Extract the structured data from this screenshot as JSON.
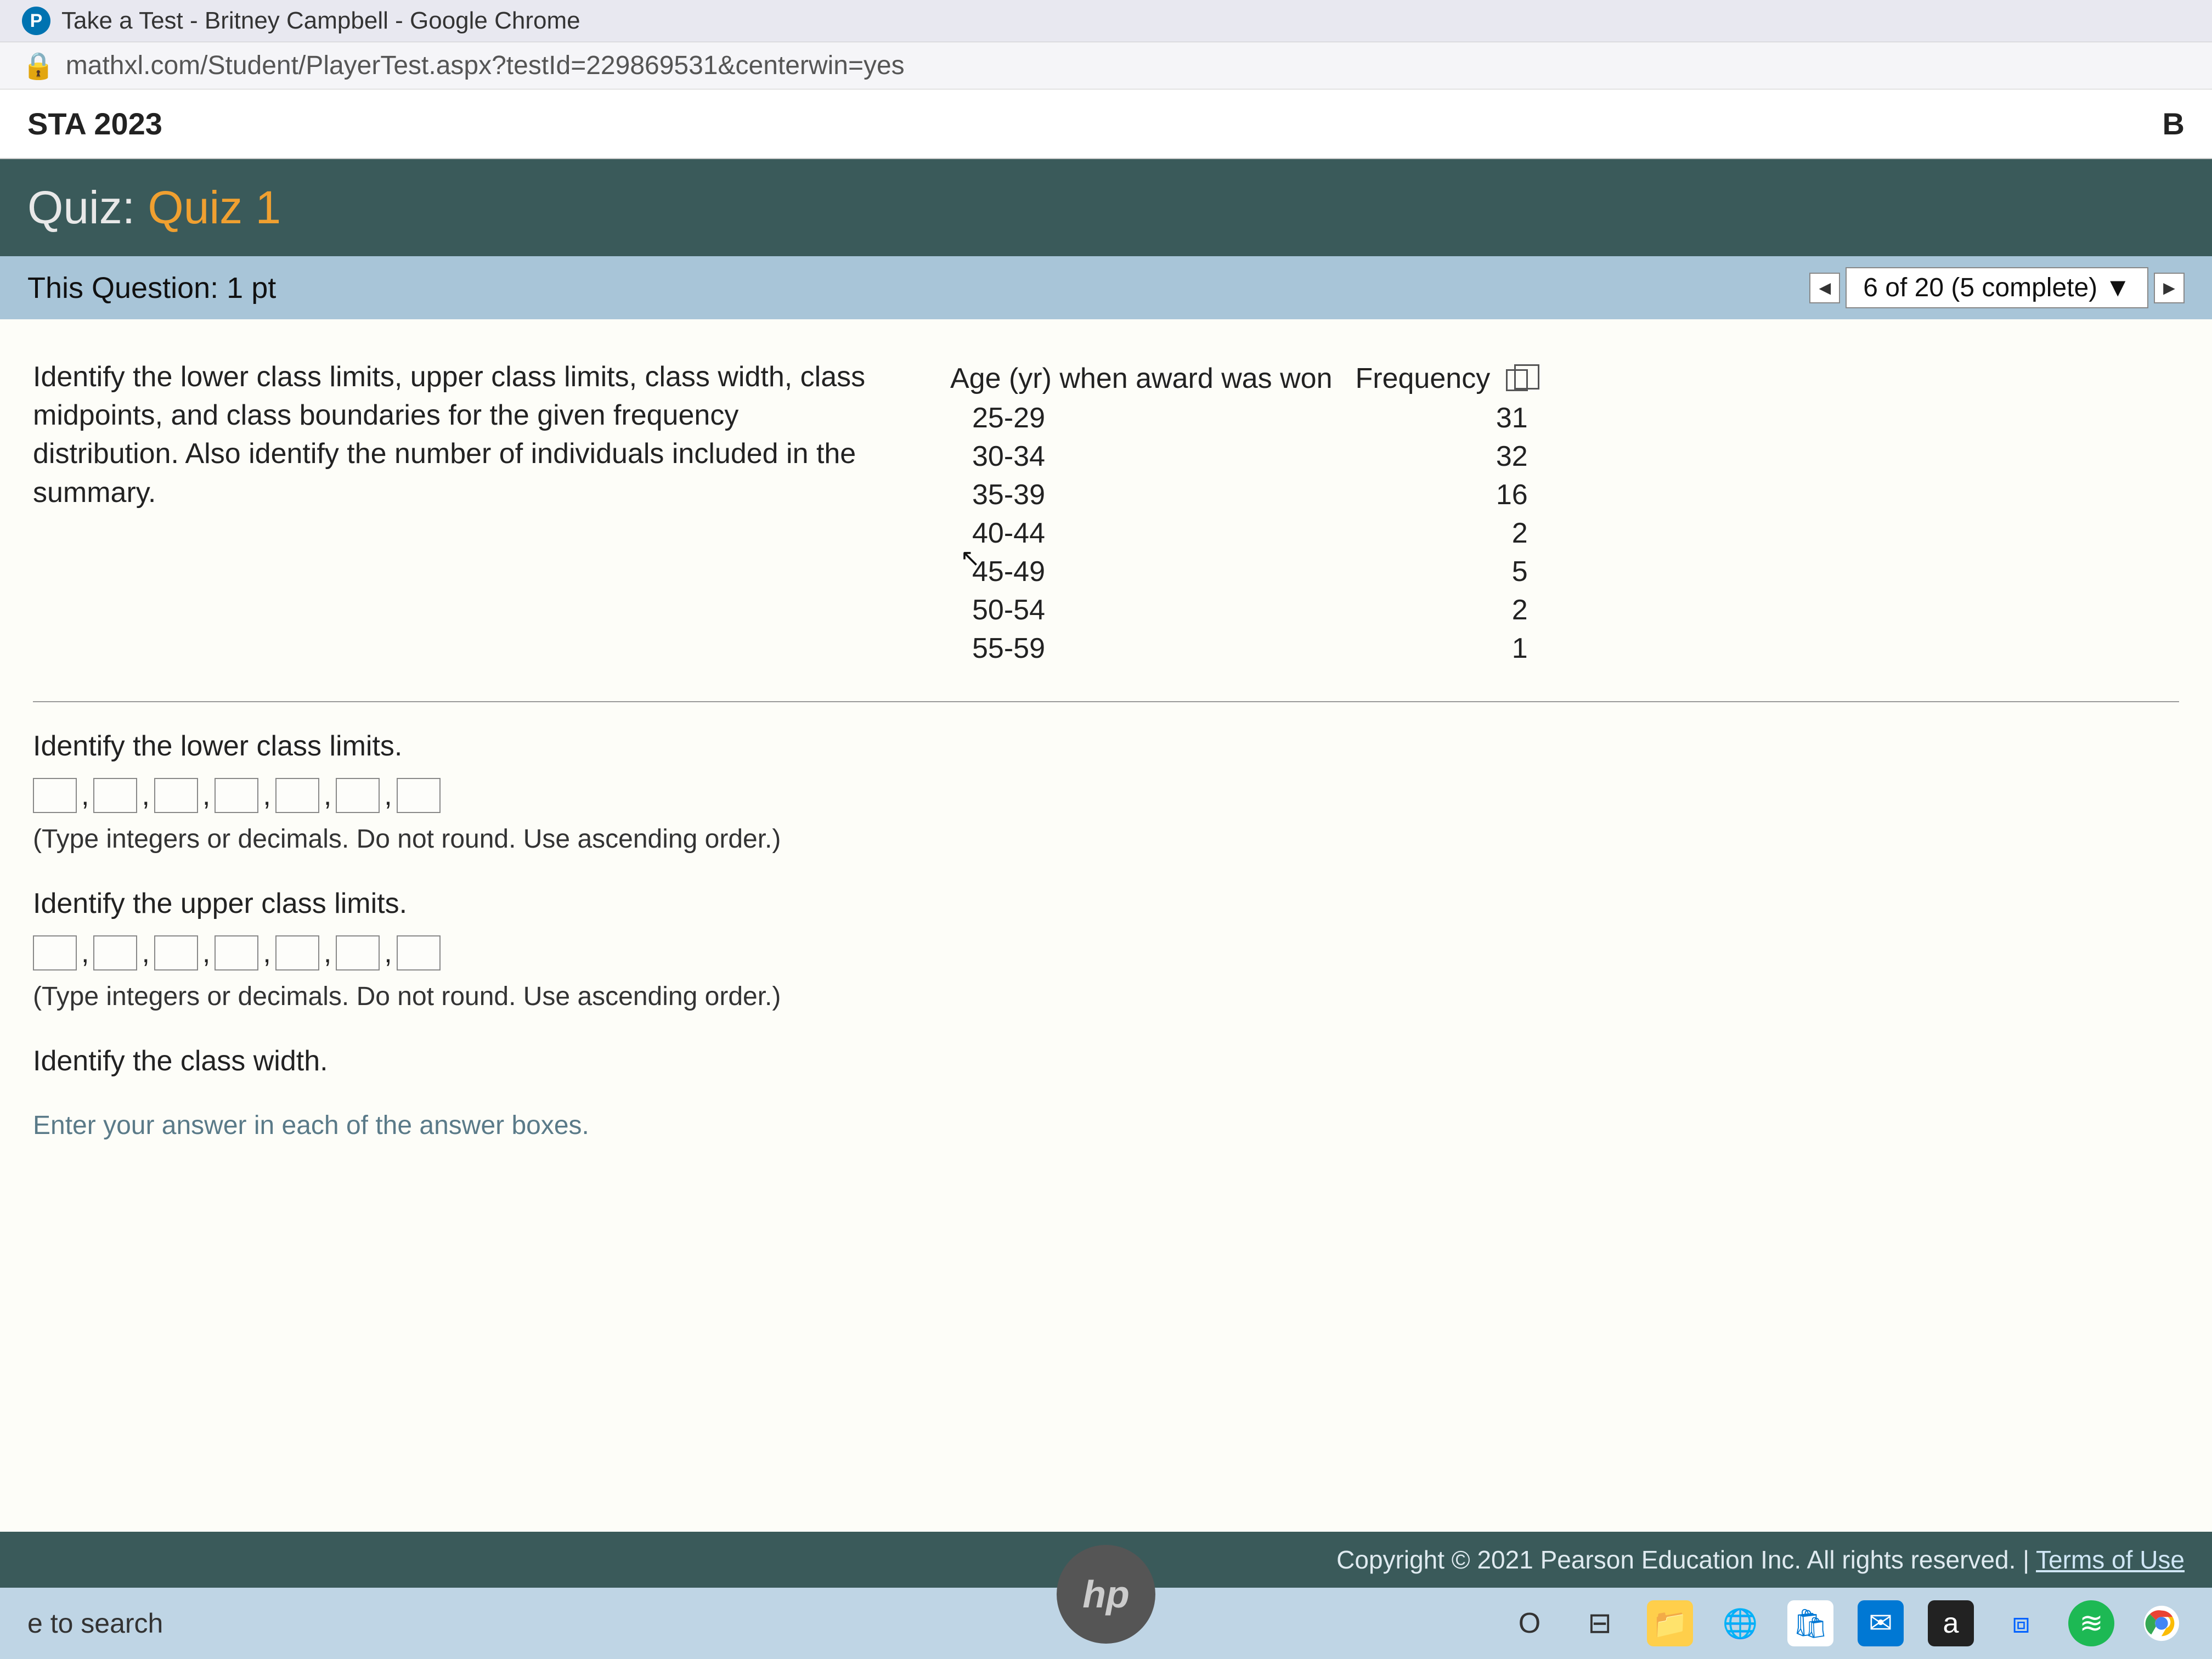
{
  "window": {
    "title": "Take a Test - Britney Campbell - Google Chrome",
    "url": "mathxl.com/Student/PlayerTest.aspx?testId=229869531&centerwin=yes"
  },
  "course": {
    "name": "STA 2023",
    "right_label": "B"
  },
  "quiz": {
    "label": "Quiz:",
    "name": "Quiz 1"
  },
  "question_bar": {
    "label": "This Question: 1 pt",
    "progress": "6 of 20 (5 complete)"
  },
  "instruction": "Identify the lower class limits, upper class limits, class width, class midpoints, and class boundaries for the given frequency distribution. Also identify the number of individuals included in the summary.",
  "table": {
    "headers": [
      "Age (yr) when award was won",
      "Frequency"
    ],
    "rows": [
      [
        "25-29",
        31
      ],
      [
        "30-34",
        32
      ],
      [
        "35-39",
        16
      ],
      [
        "40-44",
        2
      ],
      [
        "45-49",
        5
      ],
      [
        "50-54",
        2
      ],
      [
        "55-59",
        1
      ]
    ]
  },
  "questions": {
    "lower": {
      "prompt": "Identify the lower class limits.",
      "hint": "(Type integers or decimals. Do not round. Use ascending order.)",
      "box_count": 7
    },
    "upper": {
      "prompt": "Identify the upper class limits.",
      "hint": "(Type integers or decimals. Do not round. Use ascending order.)",
      "box_count": 7
    },
    "width": {
      "prompt": "Identify the class width."
    }
  },
  "footer_instruction": "Enter your answer in each of the answer boxes.",
  "copyright": {
    "text": "Copyright © 2021 Pearson Education Inc. All rights reserved. | ",
    "link": "Terms of Use"
  },
  "taskbar": {
    "search": "e to search"
  },
  "colors": {
    "quiz_header_bg": "#3a5a5a",
    "quiz_accent": "#f0a030",
    "question_bar_bg": "#a8c5d8",
    "taskbar_bg": "#bfd5e5"
  }
}
